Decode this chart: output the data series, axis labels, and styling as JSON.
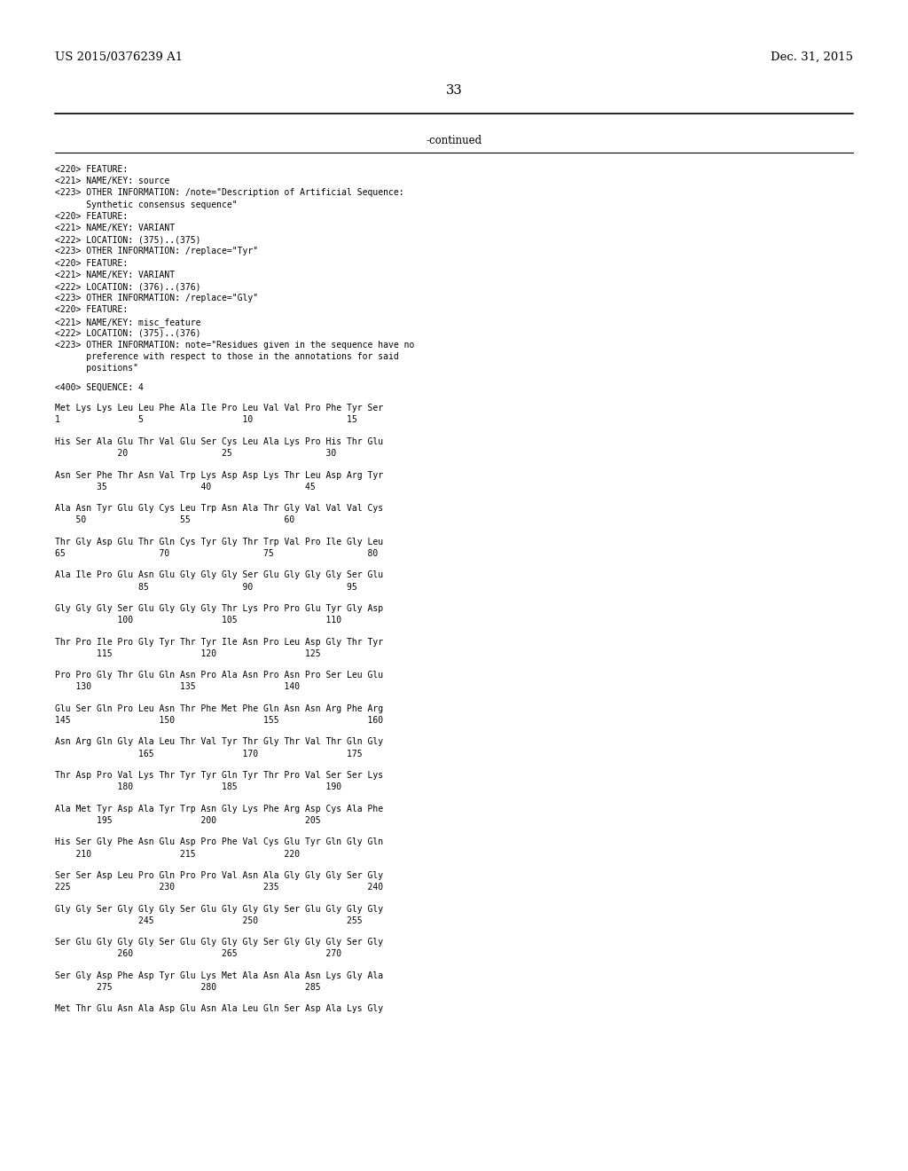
{
  "header_left": "US 2015/0376239 A1",
  "header_right": "Dec. 31, 2015",
  "page_number": "33",
  "continued": "-continued",
  "background_color": "#ffffff",
  "text_color": "#000000",
  "feature_lines": [
    "<220> FEATURE:",
    "<221> NAME/KEY: source",
    "<223> OTHER INFORMATION: /note=\"Description of Artificial Sequence:",
    "      Synthetic consensus sequence\"",
    "<220> FEATURE:",
    "<221> NAME/KEY: VARIANT",
    "<222> LOCATION: (375)..(375)",
    "<223> OTHER INFORMATION: /replace=\"Tyr\"",
    "<220> FEATURE:",
    "<221> NAME/KEY: VARIANT",
    "<222> LOCATION: (376)..(376)",
    "<223> OTHER INFORMATION: /replace=\"Gly\"",
    "<220> FEATURE:",
    "<221> NAME/KEY: misc_feature",
    "<222> LOCATION: (375)..(376)",
    "<223> OTHER INFORMATION: note=\"Residues given in the sequence have no",
    "      preference with respect to those in the annotations for said",
    "      positions\""
  ],
  "sequence_header": "<400> SEQUENCE: 4",
  "sequence_blocks": [
    {
      "residues": "Met Lys Lys Leu Leu Phe Ala Ile Pro Leu Val Val Pro Phe Tyr Ser",
      "numbers": "1               5                   10                  15"
    },
    {
      "residues": "His Ser Ala Glu Thr Val Glu Ser Cys Leu Ala Lys Pro His Thr Glu",
      "numbers": "            20                  25                  30"
    },
    {
      "residues": "Asn Ser Phe Thr Asn Val Trp Lys Asp Asp Lys Thr Leu Asp Arg Tyr",
      "numbers": "        35                  40                  45"
    },
    {
      "residues": "Ala Asn Tyr Glu Gly Cys Leu Trp Asn Ala Thr Gly Val Val Val Cys",
      "numbers": "    50                  55                  60"
    },
    {
      "residues": "Thr Gly Asp Glu Thr Gln Cys Tyr Gly Thr Trp Val Pro Ile Gly Leu",
      "numbers": "65                  70                  75                  80"
    },
    {
      "residues": "Ala Ile Pro Glu Asn Glu Gly Gly Gly Ser Glu Gly Gly Gly Ser Glu",
      "numbers": "                85                  90                  95"
    },
    {
      "residues": "Gly Gly Gly Ser Glu Gly Gly Gly Thr Lys Pro Pro Glu Tyr Gly Asp",
      "numbers": "            100                 105                 110"
    },
    {
      "residues": "Thr Pro Ile Pro Gly Tyr Thr Tyr Ile Asn Pro Leu Asp Gly Thr Tyr",
      "numbers": "        115                 120                 125"
    },
    {
      "residues": "Pro Pro Gly Thr Glu Gln Asn Pro Ala Asn Pro Asn Pro Ser Leu Glu",
      "numbers": "    130                 135                 140"
    },
    {
      "residues": "Glu Ser Gln Pro Leu Asn Thr Phe Met Phe Gln Asn Asn Arg Phe Arg",
      "numbers": "145                 150                 155                 160"
    },
    {
      "residues": "Asn Arg Gln Gly Ala Leu Thr Val Tyr Thr Gly Thr Val Thr Gln Gly",
      "numbers": "                165                 170                 175"
    },
    {
      "residues": "Thr Asp Pro Val Lys Thr Tyr Tyr Gln Tyr Thr Pro Val Ser Ser Lys",
      "numbers": "            180                 185                 190"
    },
    {
      "residues": "Ala Met Tyr Asp Ala Tyr Trp Asn Gly Lys Phe Arg Asp Cys Ala Phe",
      "numbers": "        195                 200                 205"
    },
    {
      "residues": "His Ser Gly Phe Asn Glu Asp Pro Phe Val Cys Glu Tyr Gln Gly Gln",
      "numbers": "    210                 215                 220"
    },
    {
      "residues": "Ser Ser Asp Leu Pro Gln Pro Pro Val Asn Ala Gly Gly Gly Ser Gly",
      "numbers": "225                 230                 235                 240"
    },
    {
      "residues": "Gly Gly Ser Gly Gly Gly Ser Glu Gly Gly Gly Ser Glu Gly Gly Gly",
      "numbers": "                245                 250                 255"
    },
    {
      "residues": "Ser Glu Gly Gly Gly Ser Glu Gly Gly Gly Ser Gly Gly Gly Ser Gly",
      "numbers": "            260                 265                 270"
    },
    {
      "residues": "Ser Gly Asp Phe Asp Tyr Glu Lys Met Ala Asn Ala Asn Lys Gly Ala",
      "numbers": "        275                 280                 285"
    },
    {
      "residues": "Met Thr Glu Asn Ala Asp Glu Asn Ala Leu Gln Ser Asp Ala Lys Gly",
      "numbers": ""
    }
  ]
}
